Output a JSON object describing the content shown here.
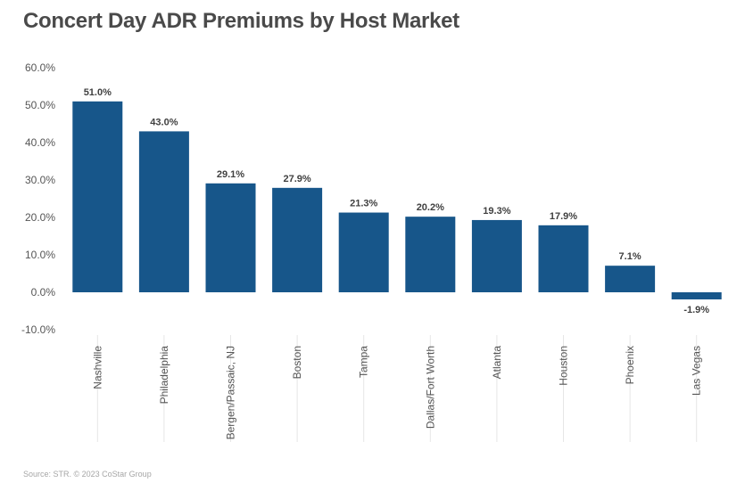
{
  "title": "Concert Day ADR Premiums by Host Market",
  "source": "Source: STR. © 2023 CoStar Group",
  "colors": {
    "bar": "#17568a",
    "axis_text": "#555555",
    "grid": "#e6e6e6",
    "label": "#404040"
  },
  "chart_data": {
    "type": "bar",
    "title": "Concert Day ADR Premiums by Host Market",
    "categories": [
      "Nashville",
      "Philadelphia",
      "Bergen/Passaic, NJ",
      "Boston",
      "Tampa",
      "Dallas/Fort Worth",
      "Atlanta",
      "Houston",
      "Phoenix",
      "Las Vegas"
    ],
    "values": [
      51.0,
      43.0,
      29.1,
      27.9,
      21.3,
      20.2,
      19.3,
      17.9,
      7.1,
      -1.9
    ],
    "value_labels": [
      "51.0%",
      "43.0%",
      "29.1%",
      "27.9%",
      "21.3%",
      "20.2%",
      "19.3%",
      "17.9%",
      "7.1%",
      "-1.9%"
    ],
    "ylim": [
      -10,
      60
    ],
    "yticks": [
      60,
      50,
      40,
      30,
      20,
      10,
      0,
      -10
    ],
    "ytick_labels": [
      "60.0%",
      "50.0%",
      "40.0%",
      "30.0%",
      "20.0%",
      "10.0%",
      "0.0%",
      "-10.0%"
    ],
    "xlabel": "",
    "ylabel": "",
    "grid": false,
    "legend": "none"
  }
}
